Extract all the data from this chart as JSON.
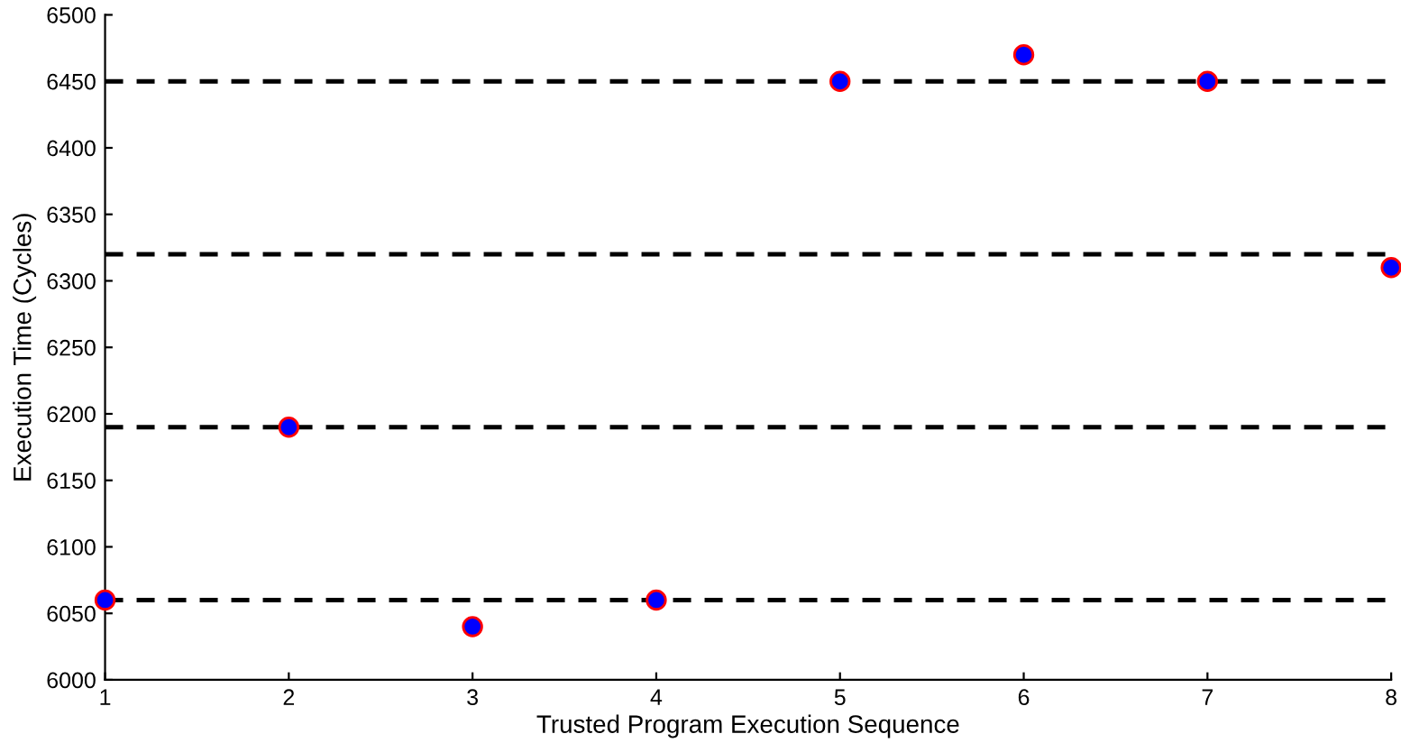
{
  "chart_data": {
    "type": "scatter",
    "xlabel": "Trusted Program Execution Sequence",
    "ylabel": "Execution Time (Cycles)",
    "x": [
      1,
      2,
      3,
      4,
      5,
      6,
      7,
      8
    ],
    "series": [
      {
        "color": "#0000ff",
        "values": [
          6060,
          6190,
          6040,
          6060,
          6450,
          6470,
          6450,
          6310
        ]
      }
    ],
    "marker": "circle",
    "xlim": [
      1,
      8
    ],
    "ylim": [
      6000,
      6500
    ],
    "xticks": [
      1,
      2,
      3,
      4,
      5,
      6,
      7,
      8
    ],
    "yticks": [
      6000,
      6050,
      6100,
      6150,
      6200,
      6250,
      6300,
      6350,
      6400,
      6450,
      6500
    ],
    "ref_lines": [
      {
        "axis": "y",
        "value": 6060,
        "color": "#000000",
        "line_style": "dashed"
      },
      {
        "axis": "y",
        "value": 6190,
        "color": "#000000",
        "line_style": "dashed"
      },
      {
        "axis": "y",
        "value": 6320,
        "color": "#000000",
        "line_style": "dashed"
      },
      {
        "axis": "y",
        "value": 6450,
        "color": "#000000",
        "line_style": "dashed"
      }
    ],
    "grid": false,
    "legend": false
  }
}
